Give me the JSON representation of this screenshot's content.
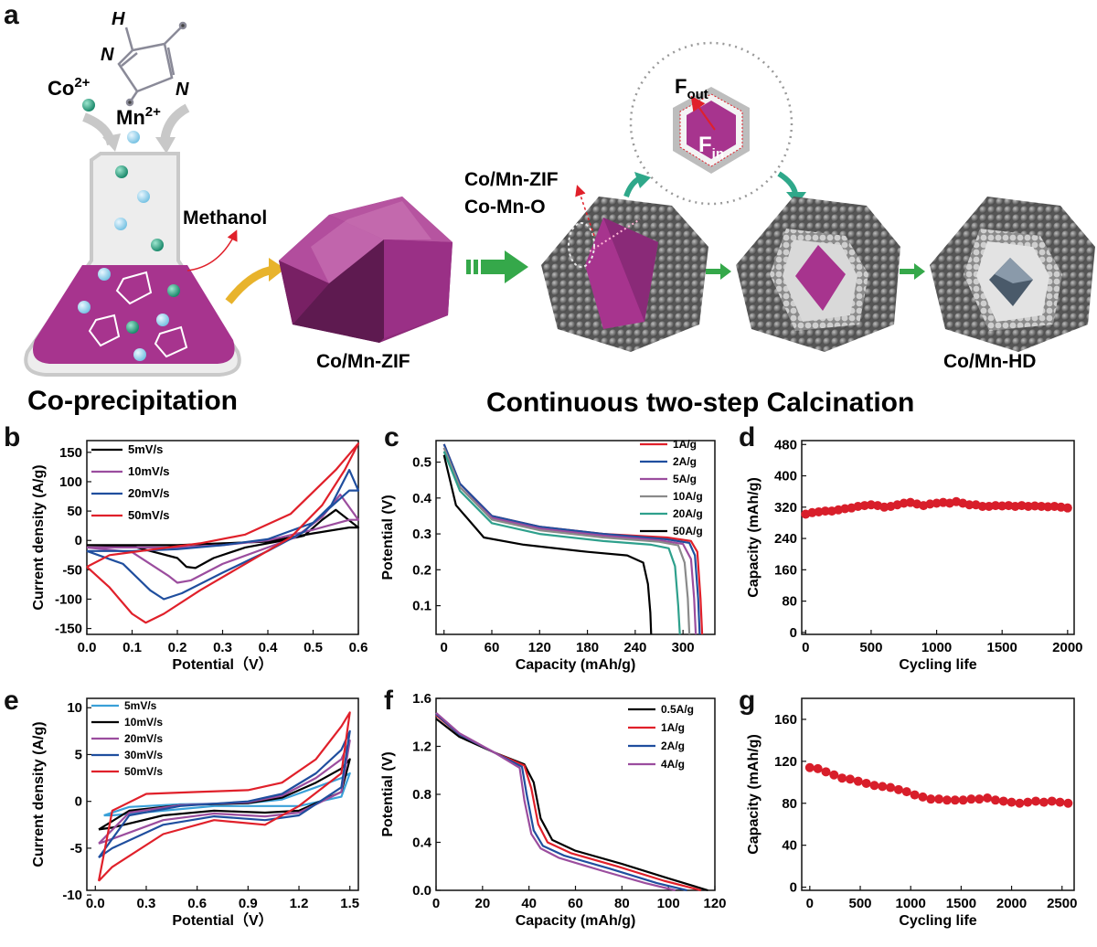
{
  "panel_labels": {
    "a": "a",
    "b": "b",
    "c": "c",
    "d": "d",
    "e": "e",
    "f": "f",
    "g": "g"
  },
  "schematic": {
    "co_ion": "Co",
    "mn_ion": "Mn",
    "ion_charge": "2+",
    "ligand_h": "H",
    "ligand_n": "N",
    "methanol": "Methanol",
    "coprecipitation": "Co-precipitation",
    "zif_label": "Co/Mn-ZIF",
    "zif_label_2": "Co/Mn-ZIF",
    "oxide_label": "Co-Mn-O",
    "f_out": "F",
    "f_out_sub": "out",
    "f_in": "F",
    "f_in_sub": "in",
    "hd_label": "Co/Mn-HD",
    "calcination": "Continuous two-step Calcination"
  },
  "colors": {
    "purple": "#a7348e",
    "gray": "#6f6f6f",
    "green": "#2fa88a",
    "gold": "#e8b32c",
    "arrow_green": "#35a84a"
  },
  "chart_data": [
    {
      "id": "b",
      "type": "line",
      "xlabel": "Potential（V）",
      "ylabel": "Current density (A/g)",
      "xlim": [
        0,
        0.6
      ],
      "ylim": [
        -160,
        170
      ],
      "xticks": [
        "0.0",
        "0.1",
        "0.2",
        "0.3",
        "0.4",
        "0.5",
        "0.6"
      ],
      "yticks": [
        "-150",
        "-100",
        "-50",
        "0",
        "50",
        "100",
        "150"
      ],
      "series": [
        {
          "name": "5mV/s",
          "color": "#000000",
          "x": [
            0,
            0.1,
            0.2,
            0.22,
            0.24,
            0.28,
            0.35,
            0.42,
            0.48,
            0.52,
            0.55,
            0.6,
            0.58,
            0.5,
            0.4,
            0.3,
            0.2,
            0.1,
            0
          ],
          "y": [
            -8,
            -10,
            -30,
            -45,
            -47,
            -30,
            -12,
            -2,
            8,
            35,
            52,
            22,
            22,
            12,
            -2,
            -5,
            -8,
            -8,
            -8
          ]
        },
        {
          "name": "10mV/s",
          "color": "#9b4d9e",
          "x": [
            0,
            0.1,
            0.18,
            0.2,
            0.23,
            0.3,
            0.4,
            0.46,
            0.52,
            0.56,
            0.6,
            0.58,
            0.5,
            0.4,
            0.3,
            0.2,
            0.1,
            0
          ],
          "y": [
            -12,
            -20,
            -60,
            -72,
            -68,
            -40,
            -12,
            5,
            40,
            78,
            35,
            35,
            18,
            0,
            -8,
            -12,
            -12,
            -12
          ]
        },
        {
          "name": "20mV/s",
          "color": "#1f4e9e",
          "x": [
            0,
            0.08,
            0.14,
            0.17,
            0.21,
            0.3,
            0.4,
            0.48,
            0.54,
            0.58,
            0.6,
            0.58,
            0.5,
            0.4,
            0.3,
            0.2,
            0.1,
            0
          ],
          "y": [
            -18,
            -40,
            -85,
            -100,
            -90,
            -55,
            -18,
            15,
            60,
            120,
            85,
            85,
            30,
            2,
            -8,
            -15,
            -18,
            -18
          ]
        },
        {
          "name": "50mV/s",
          "color": "#e0202a",
          "x": [
            0,
            0.05,
            0.1,
            0.13,
            0.17,
            0.25,
            0.35,
            0.45,
            0.52,
            0.57,
            0.6,
            0.55,
            0.45,
            0.35,
            0.25,
            0.15,
            0.05,
            0
          ],
          "y": [
            -45,
            -80,
            -125,
            -140,
            -125,
            -85,
            -40,
            5,
            60,
            120,
            165,
            120,
            45,
            10,
            -5,
            -15,
            -25,
            -45
          ]
        }
      ]
    },
    {
      "id": "c",
      "type": "line",
      "xlabel": "Capacity (mAh/g)",
      "ylabel": "Potential (V)",
      "xlim": [
        -10,
        340
      ],
      "ylim": [
        0.02,
        0.56
      ],
      "xticks": [
        "0",
        "60",
        "120",
        "180",
        "240",
        "300"
      ],
      "yticks": [
        "0.1",
        "0.2",
        "0.3",
        "0.4",
        "0.5"
      ],
      "series": [
        {
          "name": "1A/g",
          "color": "#e0202a",
          "x": [
            0,
            20,
            60,
            120,
            200,
            280,
            310,
            318,
            322,
            324
          ],
          "y": [
            0.55,
            0.44,
            0.35,
            0.32,
            0.3,
            0.29,
            0.28,
            0.25,
            0.12,
            0.02
          ]
        },
        {
          "name": "2A/g",
          "color": "#1f4e9e",
          "x": [
            0,
            20,
            60,
            120,
            200,
            280,
            308,
            315,
            319,
            321
          ],
          "y": [
            0.55,
            0.44,
            0.35,
            0.32,
            0.3,
            0.285,
            0.275,
            0.24,
            0.12,
            0.02
          ]
        },
        {
          "name": "5A/g",
          "color": "#9b4d9e",
          "x": [
            0,
            20,
            60,
            120,
            200,
            270,
            300,
            310,
            314,
            316
          ],
          "y": [
            0.54,
            0.43,
            0.345,
            0.315,
            0.295,
            0.282,
            0.272,
            0.23,
            0.12,
            0.02
          ]
        },
        {
          "name": "10A/g",
          "color": "#8a8a8a",
          "x": [
            0,
            20,
            60,
            120,
            200,
            270,
            294,
            302,
            306,
            308
          ],
          "y": [
            0.54,
            0.43,
            0.34,
            0.31,
            0.29,
            0.278,
            0.268,
            0.22,
            0.12,
            0.02
          ]
        },
        {
          "name": "20A/g",
          "color": "#2ea08c",
          "x": [
            0,
            20,
            60,
            120,
            200,
            260,
            282,
            290,
            294,
            296
          ],
          "y": [
            0.53,
            0.42,
            0.33,
            0.3,
            0.28,
            0.27,
            0.26,
            0.21,
            0.1,
            0.02
          ]
        },
        {
          "name": "50A/g",
          "color": "#000000",
          "x": [
            0,
            15,
            50,
            100,
            180,
            230,
            250,
            256,
            259,
            260
          ],
          "y": [
            0.52,
            0.38,
            0.29,
            0.27,
            0.25,
            0.24,
            0.22,
            0.16,
            0.08,
            0.02
          ]
        }
      ]
    },
    {
      "id": "d",
      "type": "scatter",
      "xlabel": "Cycling life",
      "ylabel": "Capacity (mAh/g)",
      "xlim": [
        -30,
        2050
      ],
      "ylim": [
        -5,
        490
      ],
      "xticks": [
        "0",
        "500",
        "1000",
        "1500",
        "2000"
      ],
      "yticks": [
        "0",
        "80",
        "160",
        "240",
        "320",
        "400",
        "480"
      ],
      "series": [
        {
          "name": "",
          "color": "#d81e2a",
          "x": [
            0,
            50,
            100,
            150,
            200,
            250,
            300,
            350,
            400,
            450,
            500,
            550,
            600,
            650,
            700,
            750,
            800,
            850,
            900,
            950,
            1000,
            1050,
            1100,
            1150,
            1200,
            1250,
            1300,
            1350,
            1400,
            1450,
            1500,
            1550,
            1600,
            1650,
            1700,
            1750,
            1800,
            1850,
            1900,
            1950,
            2000
          ],
          "y": [
            302,
            306,
            308,
            310,
            310,
            313,
            316,
            318,
            322,
            324,
            326,
            324,
            320,
            322,
            326,
            330,
            332,
            328,
            324,
            328,
            330,
            332,
            330,
            334,
            330,
            326,
            326,
            322,
            322,
            324,
            323,
            324,
            322,
            324,
            322,
            323,
            322,
            321,
            322,
            320,
            318
          ]
        }
      ]
    },
    {
      "id": "e",
      "type": "line",
      "xlabel": "Potential（V）",
      "ylabel": "Current density (A/g)",
      "xlim": [
        -0.05,
        1.55
      ],
      "ylim": [
        -9.5,
        11
      ],
      "xticks": [
        "0.0",
        "0.3",
        "0.6",
        "0.9",
        "1.2",
        "1.5"
      ],
      "yticks": [
        "-10",
        "-5",
        "0",
        "5",
        "10"
      ],
      "series": [
        {
          "name": "5mV/s",
          "color": "#3aa0d8",
          "x": [
            0.05,
            0.2,
            0.5,
            0.9,
            1.1,
            1.3,
            1.45,
            1.5,
            1.45,
            1.2,
            1.0,
            0.7,
            0.4,
            0.1,
            0.05
          ],
          "y": [
            -1.5,
            -0.6,
            -0.3,
            -0.2,
            0.2,
            1.5,
            2.5,
            3,
            0.5,
            -0.5,
            -0.5,
            -0.5,
            -1,
            -1.5,
            -1.5
          ]
        },
        {
          "name": "10mV/s",
          "color": "#000000",
          "x": [
            0.02,
            0.2,
            0.5,
            0.9,
            1.1,
            1.3,
            1.45,
            1.5,
            1.45,
            1.2,
            1.0,
            0.7,
            0.4,
            0.1,
            0.02
          ],
          "y": [
            -3,
            -1,
            -0.4,
            -0.2,
            0.4,
            2,
            3.5,
            4.5,
            1,
            -1,
            -1.2,
            -1,
            -1.5,
            -2.8,
            -3
          ]
        },
        {
          "name": "20mV/s",
          "color": "#9b4d9e",
          "x": [
            0.02,
            0.2,
            0.5,
            0.9,
            1.1,
            1.3,
            1.45,
            1.5,
            1.45,
            1.2,
            1.0,
            0.7,
            0.4,
            0.1,
            0.02
          ],
          "y": [
            -4.5,
            -1.2,
            -0.4,
            -0.1,
            0.6,
            2.5,
            4.5,
            6.5,
            1,
            -1.2,
            -1.6,
            -1.3,
            -2,
            -4,
            -4.5
          ]
        },
        {
          "name": "30mV/s",
          "color": "#1f4e9e",
          "x": [
            0.02,
            0.2,
            0.5,
            0.9,
            1.1,
            1.3,
            1.45,
            1.5,
            1.45,
            1.2,
            1.0,
            0.7,
            0.4,
            0.1,
            0.02
          ],
          "y": [
            -6,
            -1.5,
            -0.5,
            0,
            0.8,
            3,
            5.5,
            7.5,
            1.5,
            -1.5,
            -2,
            -1.6,
            -2.5,
            -5,
            -6
          ]
        },
        {
          "name": "50mV/s",
          "color": "#e0202a",
          "x": [
            0.02,
            0.1,
            0.3,
            0.6,
            0.9,
            1.1,
            1.3,
            1.45,
            1.5,
            1.45,
            1.2,
            1.0,
            0.7,
            0.4,
            0.1,
            0.02
          ],
          "y": [
            -8.5,
            -1,
            0.8,
            1,
            1.2,
            2,
            4.5,
            8,
            9.5,
            3,
            -0.5,
            -2.5,
            -2,
            -3.5,
            -7,
            -8.5
          ]
        }
      ]
    },
    {
      "id": "f",
      "type": "line",
      "xlabel": "Capacity (mAh/g)",
      "ylabel": "Potential (V)",
      "xlim": [
        0,
        120
      ],
      "ylim": [
        0,
        1.6
      ],
      "xticks": [
        "0",
        "20",
        "40",
        "60",
        "80",
        "100",
        "120"
      ],
      "yticks": [
        "0.0",
        "0.4",
        "0.8",
        "1.2",
        "1.6"
      ],
      "series": [
        {
          "name": "0.5A/g",
          "color": "#000000",
          "x": [
            0,
            10,
            25,
            38,
            42,
            45,
            50,
            60,
            80,
            100,
            117
          ],
          "y": [
            1.43,
            1.28,
            1.15,
            1.05,
            0.9,
            0.6,
            0.42,
            0.33,
            0.22,
            0.1,
            0
          ]
        },
        {
          "name": "1A/g",
          "color": "#e0202a",
          "x": [
            0,
            10,
            25,
            38,
            41,
            44,
            48,
            58,
            78,
            98,
            114
          ],
          "y": [
            1.46,
            1.3,
            1.15,
            1.04,
            0.85,
            0.55,
            0.4,
            0.31,
            0.2,
            0.08,
            0
          ]
        },
        {
          "name": "2A/g",
          "color": "#1f4e9e",
          "x": [
            0,
            10,
            25,
            37,
            39,
            42,
            46,
            55,
            75,
            95,
            108
          ],
          "y": [
            1.47,
            1.3,
            1.15,
            1.03,
            0.8,
            0.5,
            0.37,
            0.29,
            0.18,
            0.06,
            0
          ]
        },
        {
          "name": "4A/g",
          "color": "#9b4d9e",
          "x": [
            0,
            10,
            25,
            36,
            38,
            41,
            45,
            53,
            72,
            90,
            103
          ],
          "y": [
            1.48,
            1.31,
            1.15,
            1.02,
            0.75,
            0.47,
            0.35,
            0.27,
            0.16,
            0.06,
            0
          ]
        }
      ]
    },
    {
      "id": "g",
      "type": "scatter",
      "xlabel": "Cycling life",
      "ylabel": "Capacity (mAh/g)",
      "xlim": [
        -80,
        2620
      ],
      "ylim": [
        -3,
        180
      ],
      "xticks": [
        "0",
        "500",
        "1000",
        "1500",
        "2000",
        "2500"
      ],
      "yticks": [
        "0",
        "40",
        "80",
        "120",
        "160"
      ],
      "series": [
        {
          "name": "",
          "color": "#d81e2a",
          "x": [
            0,
            80,
            160,
            240,
            320,
            400,
            480,
            560,
            640,
            720,
            800,
            880,
            960,
            1040,
            1120,
            1200,
            1280,
            1360,
            1440,
            1520,
            1600,
            1680,
            1760,
            1840,
            1920,
            2000,
            2080,
            2160,
            2240,
            2320,
            2400,
            2480,
            2560
          ],
          "y": [
            114,
            113,
            110,
            107,
            104,
            103,
            101,
            99,
            97,
            96,
            95,
            93,
            91,
            88,
            86,
            84,
            84,
            83,
            83,
            83,
            84,
            84,
            85,
            83,
            82,
            81,
            80,
            81,
            82,
            81,
            82,
            81,
            80
          ]
        }
      ]
    }
  ]
}
